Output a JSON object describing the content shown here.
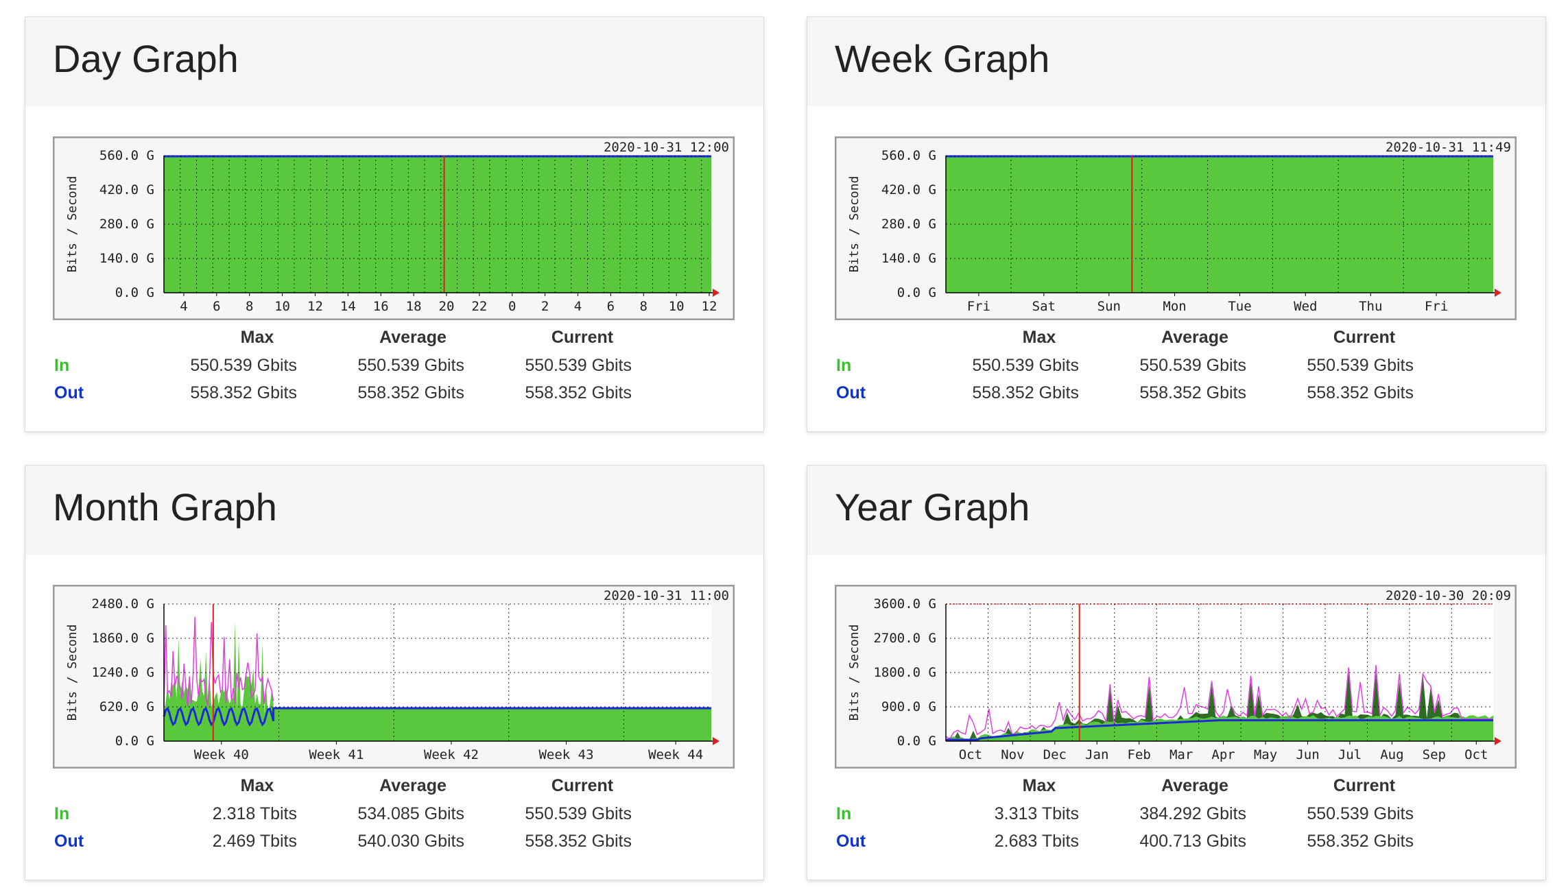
{
  "colors": {
    "in_label": "#3cbf2e",
    "out_label": "#0f34c8",
    "fill_in": "#5ac83c",
    "line_out": "#1c2ad6",
    "grid_bg": "#f6f6f6",
    "now_line": "#e02020",
    "max_in": "#226622",
    "max_out": "#e040e0"
  },
  "stats_labels": {
    "max": "Max",
    "average": "Average",
    "current": "Current",
    "in": "In",
    "out": "Out"
  },
  "graphs": [
    {
      "title": "Day Graph",
      "timestamp": "2020-10-31 12:00",
      "ylabel": "Bits / Second",
      "yticks": [
        "560.0 G",
        "420.0 G",
        "280.0 G",
        "140.0 G",
        "0.0 G"
      ],
      "xticks": [
        "4",
        "6",
        "8",
        "10",
        "12",
        "14",
        "16",
        "18",
        "20",
        "22",
        "0",
        "2",
        "4",
        "6",
        "8",
        "10",
        "12"
      ],
      "stats": {
        "in": {
          "max": "550.539 Gbits",
          "average": "550.539 Gbits",
          "current": "550.539 Gbits"
        },
        "out": {
          "max": "558.352 Gbits",
          "average": "558.352 Gbits",
          "current": "558.352 Gbits"
        }
      }
    },
    {
      "title": "Week Graph",
      "timestamp": "2020-10-31 11:49",
      "ylabel": "Bits / Second",
      "yticks": [
        "560.0 G",
        "420.0 G",
        "280.0 G",
        "140.0 G",
        "0.0 G"
      ],
      "xticks": [
        "Fri",
        "Sat",
        "Sun",
        "Mon",
        "Tue",
        "Wed",
        "Thu",
        "Fri"
      ],
      "stats": {
        "in": {
          "max": "550.539 Gbits",
          "average": "550.539 Gbits",
          "current": "550.539 Gbits"
        },
        "out": {
          "max": "558.352 Gbits",
          "average": "558.352 Gbits",
          "current": "558.352 Gbits"
        }
      }
    },
    {
      "title": "Month Graph",
      "timestamp": "2020-10-31 11:00",
      "ylabel": "Bits / Second",
      "yticks": [
        "2480.0 G",
        "1860.0 G",
        "1240.0 G",
        "620.0 G",
        "0.0 G"
      ],
      "xticks": [
        "Week 40",
        "Week 41",
        "Week 42",
        "Week 43",
        "Week 44"
      ],
      "stats": {
        "in": {
          "max": "2.318 Tbits",
          "average": "534.085 Gbits",
          "current": "550.539 Gbits"
        },
        "out": {
          "max": "2.469 Tbits",
          "average": "540.030 Gbits",
          "current": "558.352 Gbits"
        }
      }
    },
    {
      "title": "Year Graph",
      "timestamp": "2020-10-30 20:09",
      "ylabel": "Bits / Second",
      "yticks": [
        "3600.0 G",
        "2700.0 G",
        "1800.0 G",
        "900.0 G",
        "0.0 G"
      ],
      "xticks": [
        "Oct",
        "Nov",
        "Dec",
        "Jan",
        "Feb",
        "Mar",
        "Apr",
        "May",
        "Jun",
        "Jul",
        "Aug",
        "Sep",
        "Oct"
      ],
      "stats": {
        "in": {
          "max": "3.313 Tbits",
          "average": "384.292 Gbits",
          "current": "550.539 Gbits"
        },
        "out": {
          "max": "2.683 Tbits",
          "average": "400.713 Gbits",
          "current": "558.352 Gbits"
        }
      }
    }
  ]
}
